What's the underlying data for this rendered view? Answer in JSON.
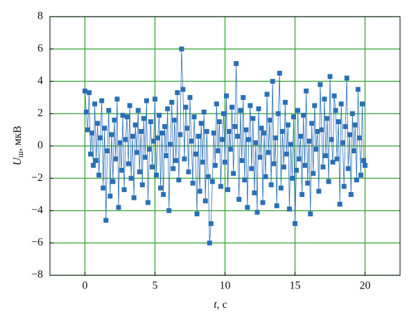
{
  "chart_data": {
    "type": "line",
    "xlabel_symbol": "t",
    "xlabel_rest": ", с",
    "ylabel_symbol": "U",
    "ylabel_subscript": "ш",
    "ylabel_rest": ", мкВ",
    "xlim": [
      -2.5,
      22.5
    ],
    "xticks": [
      0,
      5,
      10,
      15,
      20
    ],
    "ylim": [
      -8,
      8
    ],
    "yticks": [
      {
        "value": -8,
        "label": "−8"
      },
      {
        "value": -6,
        "label": "−6"
      },
      {
        "value": -4,
        "label": "−4"
      },
      {
        "value": -2,
        "label": "−2"
      },
      0,
      2,
      4,
      6,
      8
    ],
    "grid": true,
    "grid_color": "#2ca02c",
    "x": [
      0,
      0.1,
      0.2,
      0.3,
      0.4,
      0.5,
      0.6,
      0.7,
      0.8,
      0.9,
      1,
      1.1,
      1.2,
      1.3,
      1.4,
      1.5,
      1.6,
      1.7,
      1.8,
      1.9,
      2,
      2.1,
      2.2,
      2.3,
      2.4,
      2.5,
      2.6,
      2.7,
      2.8,
      2.9,
      3,
      3.1,
      3.2,
      3.3,
      3.4,
      3.5,
      3.6,
      3.7,
      3.8,
      3.9,
      4,
      4.1,
      4.2,
      4.3,
      4.4,
      4.5,
      4.6,
      4.7,
      4.8,
      4.9,
      5,
      5.1,
      5.2,
      5.3,
      5.4,
      5.5,
      5.6,
      5.7,
      5.8,
      5.9,
      6,
      6.1,
      6.2,
      6.3,
      6.4,
      6.5,
      6.6,
      6.7,
      6.8,
      6.9,
      7,
      7.1,
      7.2,
      7.3,
      7.4,
      7.5,
      7.6,
      7.7,
      7.8,
      7.9,
      8,
      8.1,
      8.2,
      8.3,
      8.4,
      8.5,
      8.6,
      8.7,
      8.8,
      8.9,
      9,
      9.1,
      9.2,
      9.3,
      9.4,
      9.5,
      9.6,
      9.7,
      9.8,
      9.9,
      10,
      10.1,
      10.2,
      10.3,
      10.4,
      10.5,
      10.6,
      10.7,
      10.8,
      10.9,
      11,
      11.1,
      11.2,
      11.3,
      11.4,
      11.5,
      11.6,
      11.7,
      11.8,
      11.9,
      12,
      12.1,
      12.2,
      12.3,
      12.4,
      12.5,
      12.6,
      12.7,
      12.8,
      12.9,
      13,
      13.1,
      13.2,
      13.3,
      13.4,
      13.5,
      13.6,
      13.7,
      13.8,
      13.9,
      14,
      14.1,
      14.2,
      14.3,
      14.4,
      14.5,
      14.6,
      14.7,
      14.8,
      14.9,
      15,
      15.1,
      15.2,
      15.3,
      15.4,
      15.5,
      15.6,
      15.7,
      15.8,
      15.9,
      16,
      16.1,
      16.2,
      16.3,
      16.4,
      16.5,
      16.6,
      16.7,
      16.8,
      16.9,
      17,
      17.1,
      17.2,
      17.3,
      17.4,
      17.5,
      17.6,
      17.7,
      17.8,
      17.9,
      18,
      18.1,
      18.2,
      18.3,
      18.4,
      18.5,
      18.6,
      18.7,
      18.8,
      18.9,
      19,
      19.1,
      19.2,
      19.3,
      19.4,
      19.5,
      19.6,
      19.7,
      19.8,
      19.9,
      20
    ],
    "series": [
      {
        "color": "#2a6fb5",
        "values": [
          3.4,
          2.1,
          1.0,
          3.3,
          -0.5,
          0.8,
          -1.2,
          2.6,
          -0.9,
          1.4,
          -1.8,
          0.5,
          2.8,
          -2.6,
          1.1,
          -4.6,
          -0.3,
          2.2,
          -3.1,
          0.7,
          -2.2,
          1.6,
          -0.8,
          2.9,
          -3.8,
          0.2,
          -1.5,
          1.9,
          -2.7,
          0.4,
          1.8,
          -1.1,
          2.5,
          -2.0,
          0.6,
          -3.2,
          1.3,
          -0.4,
          2.2,
          -1.6,
          0.9,
          -2.4,
          1.7,
          -0.7,
          2.8,
          -3.5,
          -0.2,
          1.5,
          -1.3,
          0.3,
          2.9,
          -1.8,
          0.5,
          1.9,
          -2.6,
          0.8,
          -3.0,
          1.2,
          -0.6,
          2.3,
          -4.0,
          0.1,
          2.7,
          -1.4,
          1.6,
          -0.9,
          3.3,
          -2.1,
          0.7,
          6.0,
          3.5,
          -0.8,
          2.4,
          1.1,
          -1.6,
          3.0,
          0.3,
          -2.3,
          1.8,
          -0.5,
          -4.2,
          0.6,
          -2.8,
          1.4,
          -1.0,
          2.1,
          -3.4,
          0.9,
          -1.9,
          -6.0,
          -4.8,
          -2.2,
          0.8,
          -1.2,
          2.6,
          -0.3,
          1.5,
          -2.5,
          0.4,
          2.0,
          -1.0,
          3.1,
          -2.7,
          0.9,
          -0.2,
          2.4,
          -1.7,
          1.2,
          5.1,
          0.6,
          -3.3,
          2.2,
          -0.9,
          3.0,
          -2.1,
          1.0,
          -3.8,
          0.4,
          2.5,
          -1.4,
          1.7,
          -2.9,
          0.2,
          -4.1,
          2.3,
          -0.7,
          1.1,
          -3.5,
          0.8,
          -1.9,
          3.2,
          -0.4,
          1.6,
          -2.4,
          4.0,
          -1.1,
          0.5,
          -3.7,
          2.0,
          4.5,
          -2.6,
          0.9,
          -1.3,
          2.7,
          -0.5,
          1.3,
          -3.9,
          0.1,
          -2.0,
          1.8,
          -4.8,
          -1.5,
          2.2,
          -0.8,
          0.6,
          -3.0,
          1.9,
          -1.2,
          3.4,
          -2.3,
          0.3,
          -4.2,
          1.4,
          -1.7,
          2.5,
          -0.2,
          0.9,
          -2.8,
          3.8,
          1.0,
          -1.3,
          2.9,
          -0.6,
          1.7,
          -2.2,
          4.3,
          0.4,
          -1.0,
          3.1,
          2.2,
          -0.8,
          1.5,
          -3.6,
          2.6,
          0.2,
          -2.5,
          1.2,
          4.2,
          -1.4,
          0.7,
          -3.0,
          2.0,
          -0.3,
          1.3,
          -2.1,
          3.5,
          0.5,
          -1.8,
          2.6,
          -0.9,
          -1.2
        ]
      }
    ]
  }
}
